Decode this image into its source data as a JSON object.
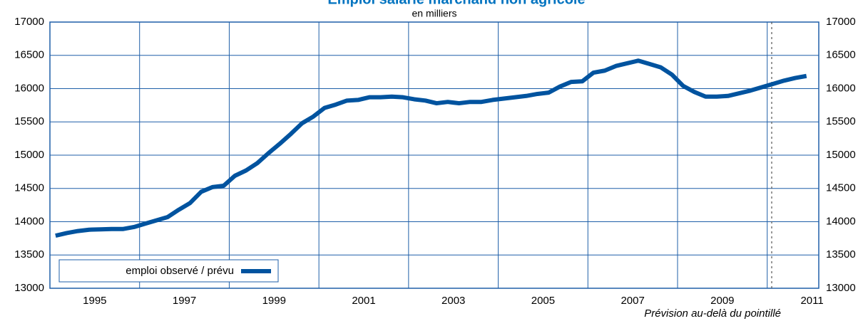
{
  "chart_data": {
    "type": "line",
    "title": "Emploi salarié marchand non agricole",
    "subtitle": "en milliers",
    "note": "Prévision au-delà du pointillé",
    "x": [
      1994.125,
      1994.375,
      1994.625,
      1994.875,
      1995.125,
      1995.375,
      1995.625,
      1995.875,
      1996.125,
      1996.375,
      1996.625,
      1996.875,
      1997.125,
      1997.375,
      1997.625,
      1997.875,
      1998.125,
      1998.375,
      1998.625,
      1998.875,
      1999.125,
      1999.375,
      1999.625,
      1999.875,
      2000.125,
      2000.375,
      2000.625,
      2000.875,
      2001.125,
      2001.375,
      2001.625,
      2001.875,
      2002.125,
      2002.375,
      2002.625,
      2002.875,
      2003.125,
      2003.375,
      2003.625,
      2003.875,
      2004.125,
      2004.375,
      2004.625,
      2004.875,
      2005.125,
      2005.375,
      2005.625,
      2005.875,
      2006.125,
      2006.375,
      2006.625,
      2006.875,
      2007.125,
      2007.375,
      2007.625,
      2007.875,
      2008.125,
      2008.375,
      2008.625,
      2008.875,
      2009.125,
      2009.375,
      2009.625,
      2009.875,
      2010.125,
      2010.375,
      2010.625,
      2010.875
    ],
    "series": [
      {
        "name": "emploi observé / prévu",
        "color": "#00539f",
        "values": [
          13790,
          13830,
          13860,
          13880,
          13885,
          13890,
          13890,
          13920,
          13970,
          14020,
          14070,
          14180,
          14280,
          14450,
          14520,
          14540,
          14690,
          14770,
          14880,
          15030,
          15170,
          15320,
          15480,
          15580,
          15710,
          15760,
          15820,
          15830,
          15870,
          15870,
          15880,
          15870,
          15840,
          15820,
          15780,
          15800,
          15780,
          15800,
          15800,
          15830,
          15850,
          15870,
          15890,
          15920,
          15940,
          16030,
          16100,
          16110,
          16240,
          16270,
          16340,
          16380,
          16420,
          16370,
          16320,
          16210,
          16040,
          15950,
          15880,
          15880,
          15890,
          15930,
          15970,
          16020,
          16070,
          16120,
          16160,
          16190
        ]
      }
    ],
    "xlim": [
      1994,
      2011.15
    ],
    "xticks": [
      1995,
      1997,
      1999,
      2001,
      2003,
      2005,
      2007,
      2009,
      2011
    ],
    "x_gridlines": [
      1996,
      1998,
      2000,
      2002,
      2004,
      2006,
      2008,
      2010
    ],
    "forecast_start": 2010.1,
    "ylim": [
      13000,
      17000
    ],
    "yticks": [
      13000,
      13500,
      14000,
      14500,
      15000,
      15500,
      16000,
      16500,
      17000
    ],
    "y2lim": [
      13000,
      17000
    ],
    "y2ticks": [
      13000,
      13500,
      14000,
      14500,
      15000,
      15500,
      16000,
      16500,
      17000
    ],
    "grid": true,
    "legend": "lower left"
  }
}
